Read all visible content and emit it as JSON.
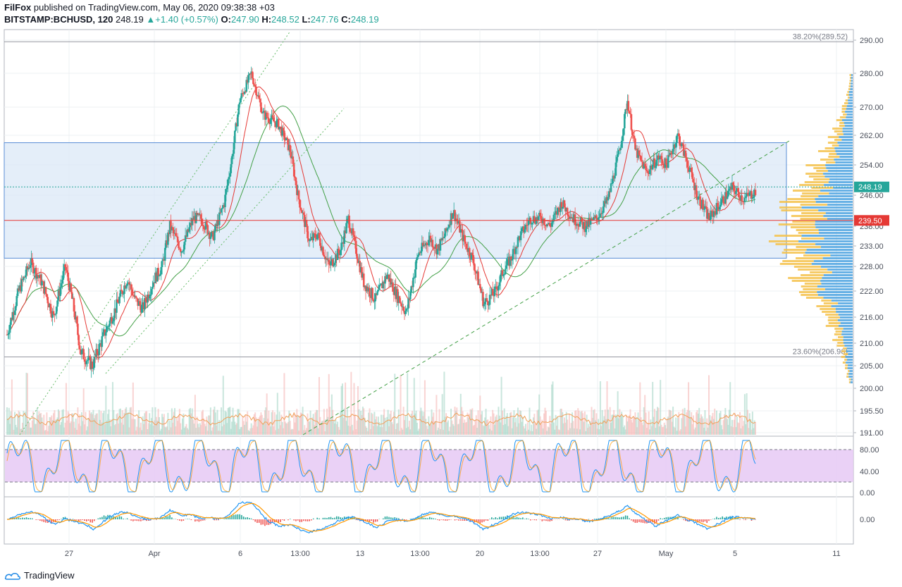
{
  "header": {
    "author": "FilFox",
    "published": "published on TradingView.com, May 06, 2020 09:38:38 +03",
    "symbol": "BITSTAMP:BCHUSD, 120",
    "last": "248.19",
    "change": "+1.40 (+0.57%)",
    "o_label": "O:",
    "o": "247.90",
    "h_label": "H:",
    "h": "248.52",
    "l_label": "L:",
    "l": "247.76",
    "c_label": "C:",
    "c": "248.19"
  },
  "footer": {
    "brand": "TradingView"
  },
  "colors": {
    "up": "#26a69a",
    "down": "#ef5350",
    "ma_fast": "#e53935",
    "ma_slow": "#43a047",
    "zone_fill": "#dbe8f7",
    "zone_line": "#5b8fd6",
    "vp_up": "#4ea3e0",
    "vp_down": "#f5c24c",
    "rsi_band": "#e6c9f5",
    "price_badge": "#26a69a",
    "level_badge": "#e53935"
  },
  "chart_data": {
    "type": "candlestick",
    "price_axis": {
      "ticks": [
        "290.00",
        "280.00",
        "270.00",
        "262.00",
        "254.00",
        "246.00",
        "238.00",
        "233.00",
        "228.00",
        "222.00",
        "216.00",
        "210.00",
        "205.00",
        "200.00",
        "195.50",
        "191.00"
      ],
      "range": [
        191,
        292
      ]
    },
    "time_axis": {
      "labels": [
        "27",
        "Apr",
        "6",
        "13:00",
        "13",
        "13:00",
        "20",
        "13:00",
        "27",
        "May",
        "5",
        "11"
      ]
    },
    "last_price": "248.19",
    "level_line": "239.50",
    "fib_levels": [
      {
        "label": "38.20%(289.52)",
        "value": 289.52
      },
      {
        "label": "23.60%(206.96)",
        "value": 206.96
      }
    ],
    "zone": {
      "top": 260,
      "bottom": 230
    },
    "price_path": [
      [
        0,
        212
      ],
      [
        3,
        222
      ],
      [
        6,
        229
      ],
      [
        9,
        224
      ],
      [
        12,
        216
      ],
      [
        15,
        228
      ],
      [
        17,
        219
      ],
      [
        19,
        208
      ],
      [
        22,
        205
      ],
      [
        25,
        212
      ],
      [
        28,
        218
      ],
      [
        31,
        225
      ],
      [
        33,
        220
      ],
      [
        35,
        218
      ],
      [
        38,
        225
      ],
      [
        40,
        228
      ],
      [
        42,
        238
      ],
      [
        45,
        232
      ],
      [
        48,
        240
      ],
      [
        50,
        240
      ],
      [
        53,
        235
      ],
      [
        56,
        244
      ],
      [
        58,
        256
      ],
      [
        60,
        272
      ],
      [
        63,
        280
      ],
      [
        66,
        268
      ],
      [
        70,
        265
      ],
      [
        73,
        258
      ],
      [
        75,
        246
      ],
      [
        78,
        234
      ],
      [
        80,
        236
      ],
      [
        83,
        228
      ],
      [
        86,
        232
      ],
      [
        88,
        240
      ],
      [
        90,
        232
      ],
      [
        92,
        224
      ],
      [
        95,
        220
      ],
      [
        98,
        226
      ],
      [
        100,
        222
      ],
      [
        103,
        217
      ],
      [
        106,
        231
      ],
      [
        109,
        235
      ],
      [
        111,
        232
      ],
      [
        113,
        236
      ],
      [
        115,
        242
      ],
      [
        118,
        234
      ],
      [
        120,
        230
      ],
      [
        123,
        219
      ],
      [
        126,
        222
      ],
      [
        128,
        227
      ],
      [
        130,
        230
      ],
      [
        132,
        235
      ],
      [
        135,
        240
      ],
      [
        138,
        240
      ],
      [
        140,
        238
      ],
      [
        143,
        244
      ],
      [
        146,
        240
      ],
      [
        149,
        238
      ],
      [
        152,
        240
      ],
      [
        155,
        245
      ],
      [
        158,
        258
      ],
      [
        160,
        272
      ],
      [
        162,
        258
      ],
      [
        165,
        252
      ],
      [
        168,
        256
      ],
      [
        170,
        254
      ],
      [
        173,
        262
      ],
      [
        175,
        256
      ],
      [
        178,
        246
      ],
      [
        181,
        240
      ],
      [
        184,
        244
      ],
      [
        187,
        248
      ],
      [
        190,
        245
      ],
      [
        193,
        247
      ]
    ],
    "rsi_axis": [
      "80.00",
      "40.00",
      "0.00"
    ],
    "macd_axis": [
      "0.00"
    ]
  }
}
